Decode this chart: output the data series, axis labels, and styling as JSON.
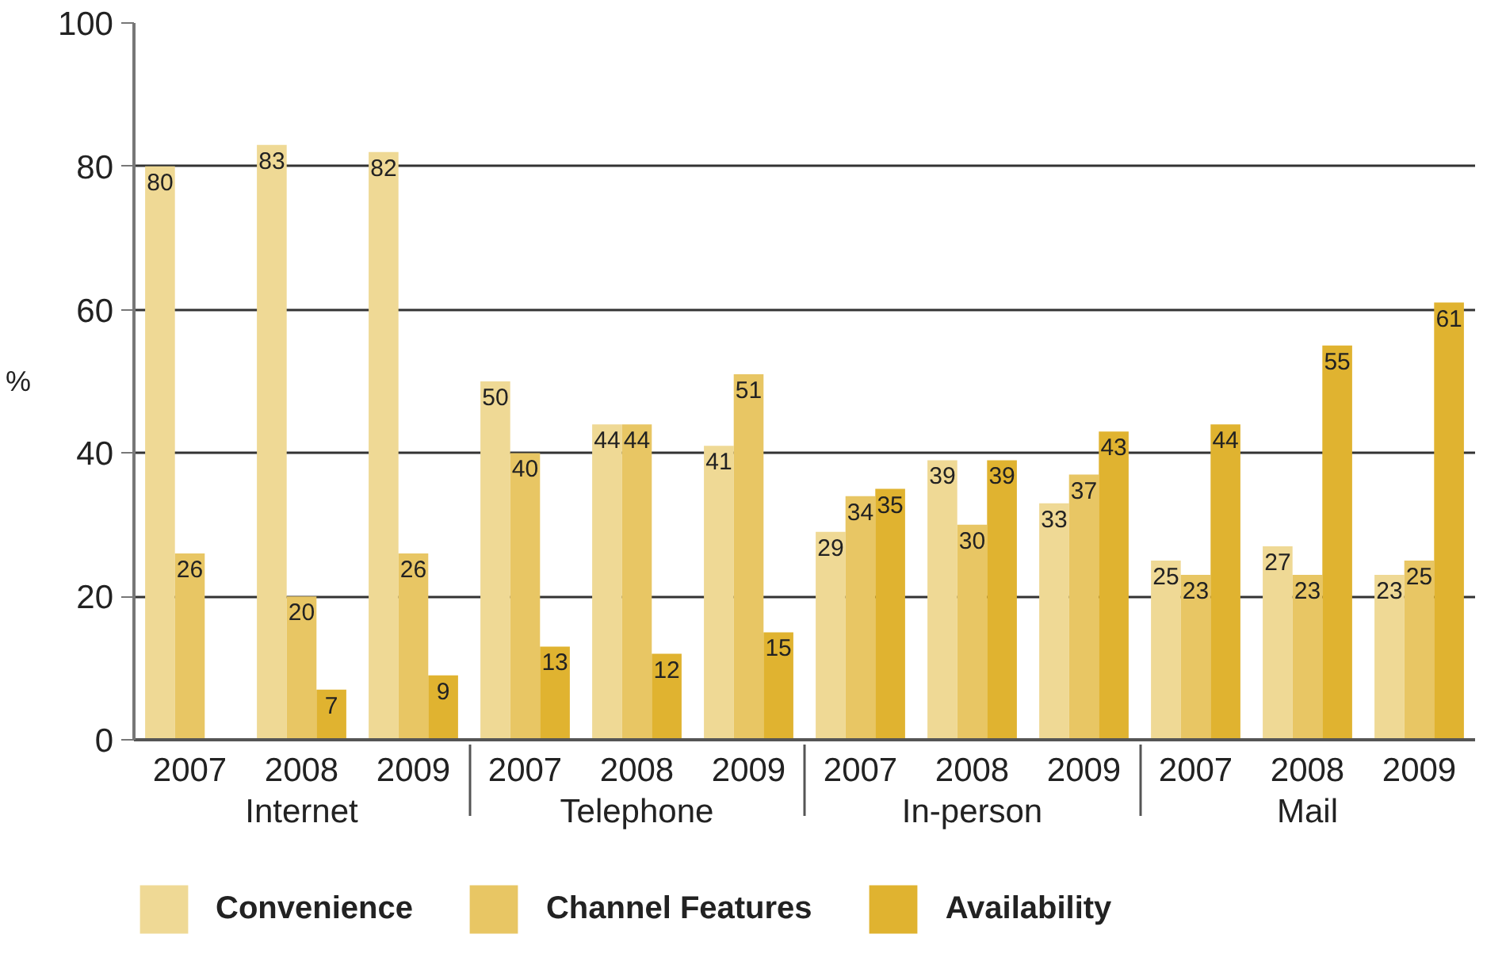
{
  "chart_data": {
    "type": "bar",
    "ylabel": "%",
    "categories": [
      [
        "Internet",
        "2007"
      ],
      [
        null,
        "2008"
      ],
      [
        null,
        "2009"
      ],
      [
        "Telephone",
        "2007"
      ],
      [
        null,
        "2008"
      ],
      [
        null,
        "2009"
      ],
      [
        "In-person",
        "2007"
      ],
      [
        null,
        "2008"
      ],
      [
        null,
        "2009"
      ],
      [
        "Mail",
        "2007"
      ],
      [
        null,
        "2008"
      ],
      [
        null,
        "2009"
      ]
    ],
    "series": [
      {
        "name": "Convenience",
        "color": "#efd995",
        "values": [
          80,
          83,
          82,
          50,
          44,
          41,
          29,
          39,
          33,
          25,
          27,
          23
        ]
      },
      {
        "name": "Channel Features",
        "color": "#e8c664",
        "values": [
          26,
          20,
          26,
          40,
          44,
          51,
          34,
          30,
          37,
          23,
          23,
          25
        ]
      },
      {
        "name": "Availability",
        "color": "#e0b330",
        "values": [
          null,
          7,
          9,
          13,
          12,
          15,
          35,
          39,
          43,
          44,
          55,
          61
        ]
      }
    ],
    "ylim": [
      0,
      100
    ],
    "yticks": [
      0,
      20,
      40,
      60,
      80,
      100
    ],
    "grid": "y",
    "legend": "bottom",
    "data_labels": true
  }
}
